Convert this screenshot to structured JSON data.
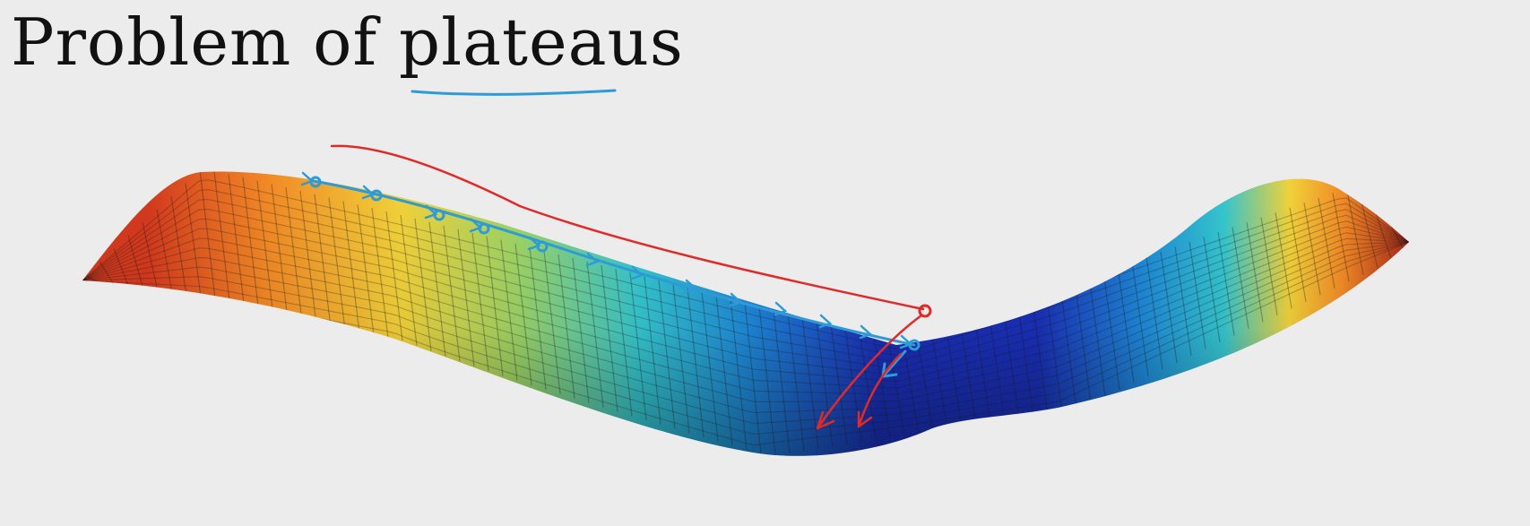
{
  "slide": {
    "title_prefix": "Problem of",
    "title_emphasis": "plateaus"
  },
  "diagram": {
    "surface": "saddle-shaped cost surface with wide plateau",
    "colormap": [
      "#1a2fb8",
      "#1f8ad8",
      "#35c6cf",
      "#9bd468",
      "#f2d23a",
      "#f18a26",
      "#d43a1e",
      "#a8261a"
    ],
    "annotation_colors": {
      "underline": "#2f9ad8",
      "slow_path": "#2f9ad8",
      "fast_path": "#e02a2a"
    }
  }
}
